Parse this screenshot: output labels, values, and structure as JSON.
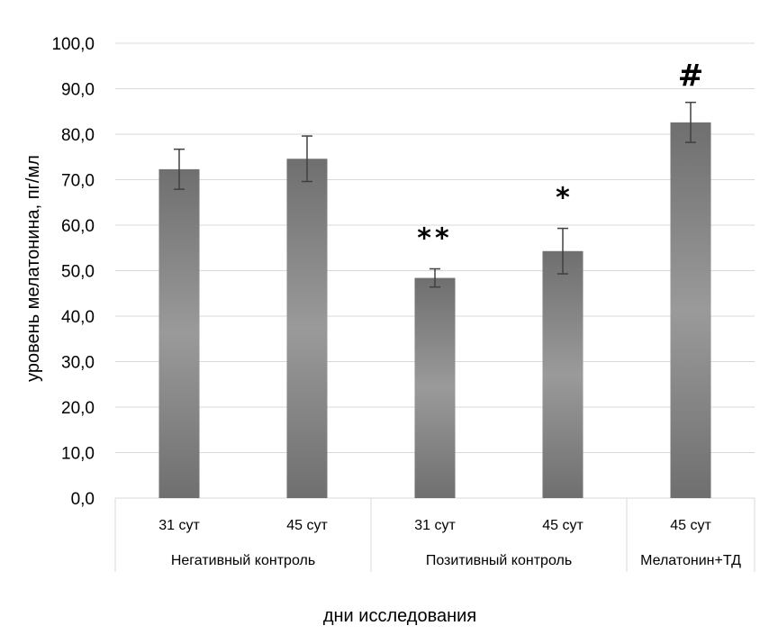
{
  "chart_data": {
    "type": "bar",
    "title": "",
    "ylabel": "уровень мелатонина, пг/мл",
    "xlabel": "дни исследования",
    "ylim": [
      0,
      100
    ],
    "ytick_step": 10,
    "ytick_labels": [
      "0,0",
      "10,0",
      "20,0",
      "30,0",
      "40,0",
      "50,0",
      "60,0",
      "70,0",
      "80,0",
      "90,0",
      "100,0"
    ],
    "grid": true,
    "legend": "none",
    "bar_color": "#7f7f7f",
    "bar_highlight": "#9a9a9a",
    "categories": [
      "31 сут",
      "45 сут",
      "31 сут",
      "45 сут",
      "45 сут"
    ],
    "groups": [
      {
        "label": "Негативный контроль",
        "span": 2
      },
      {
        "label": "Позитивный контроль",
        "span": 2
      },
      {
        "label": "Мелатонин+ТД",
        "span": 1
      }
    ],
    "values": [
      72.3,
      74.6,
      48.4,
      54.3,
      82.6
    ],
    "error": [
      4.4,
      5.0,
      2.0,
      5.0,
      4.4
    ],
    "annotations": [
      "",
      "",
      "**",
      "*",
      "#"
    ]
  }
}
